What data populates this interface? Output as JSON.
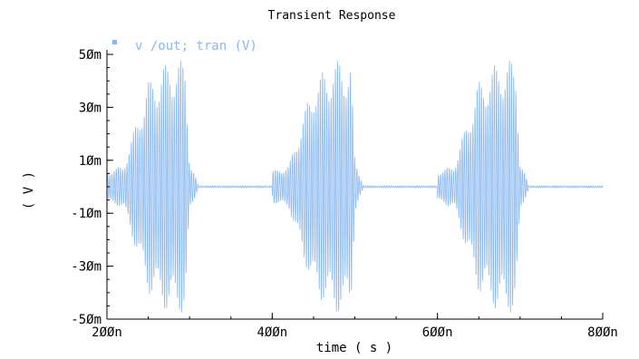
{
  "chart_data": {
    "type": "line",
    "title": "Transient Response",
    "xlabel": "time ( s )",
    "ylabel": "( V )",
    "xlim": [
      2e-07,
      8e-07
    ],
    "ylim": [
      -0.05,
      0.05
    ],
    "x_ticks": [
      {
        "value": 2e-07,
        "label": "2ØØn"
      },
      {
        "value": 4e-07,
        "label": "4ØØn"
      },
      {
        "value": 6e-07,
        "label": "6ØØn"
      },
      {
        "value": 8e-07,
        "label": "8ØØn"
      }
    ],
    "y_ticks": [
      {
        "value": 0.05,
        "label": "5Øm"
      },
      {
        "value": 0.03,
        "label": "3Øm"
      },
      {
        "value": 0.01,
        "label": "1Øm"
      },
      {
        "value": -0.01,
        "label": "-1Øm"
      },
      {
        "value": -0.03,
        "label": "-3Øm"
      },
      {
        "value": -0.05,
        "label": "-5Øm"
      }
    ],
    "grid": false,
    "legend_position": "top-left",
    "series": [
      {
        "name": "v /out; tran (V)",
        "color": "#8ab8f0",
        "oscillation_period": 2.6e-09,
        "idle_level": 0.0,
        "bursts": [
          {
            "start": 2e-07,
            "end": 3.1e-07,
            "envelope_t": [
              2e-07,
              2.2e-07,
              2.5e-07,
              2.75e-07,
              2.95e-07,
              3e-07,
              3.1e-07
            ],
            "envelope_amp": [
              0.006,
              0.008,
              0.04,
              0.048,
              0.048,
              0.01,
              0.001
            ]
          },
          {
            "start": 4e-07,
            "end": 5.1e-07,
            "envelope_t": [
              4e-07,
              4.2e-07,
              4.5e-07,
              4.75e-07,
              4.95e-07,
              5e-07,
              5.1e-07
            ],
            "envelope_amp": [
              0.006,
              0.008,
              0.04,
              0.048,
              0.048,
              0.01,
              0.001
            ]
          },
          {
            "start": 6e-07,
            "end": 7.1e-07,
            "envelope_t": [
              6e-07,
              6.2e-07,
              6.5e-07,
              6.75e-07,
              6.95e-07,
              7e-07,
              7.1e-07
            ],
            "envelope_amp": [
              0.006,
              0.008,
              0.04,
              0.048,
              0.048,
              0.01,
              0.001
            ]
          }
        ]
      }
    ]
  }
}
